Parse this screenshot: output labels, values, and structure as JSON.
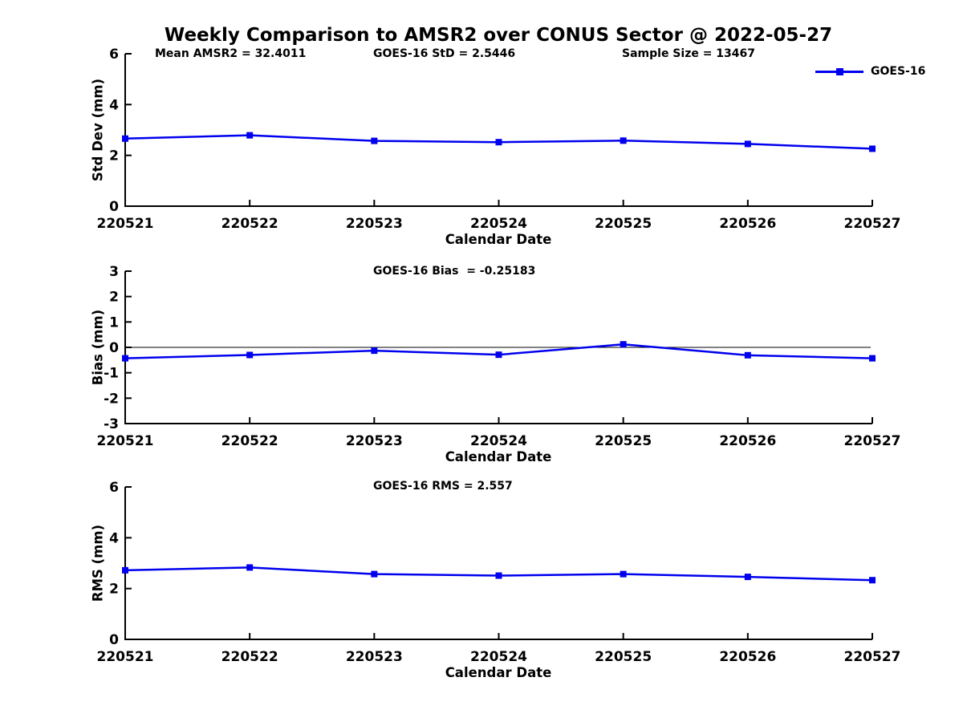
{
  "figure": {
    "title": "Weekly Comparison to AMSR2 over CONUS Sector @ 2022-05-27",
    "background": "#ffffff",
    "accent_color": "#0000ee",
    "axis_color": "#000000",
    "legend": {
      "label": "GOES-16",
      "marker": "filled-square",
      "position": "top-right"
    }
  },
  "chart_data": [
    {
      "id": "std-dev-panel",
      "type": "line",
      "title": "",
      "xlabel": "Calendar Date",
      "ylabel": "Std Dev (mm)",
      "categories": [
        "220521",
        "220522",
        "220523",
        "220524",
        "220525",
        "220526",
        "220527"
      ],
      "series": [
        {
          "name": "GOES-16",
          "values": [
            2.66,
            2.79,
            2.57,
            2.52,
            2.58,
            2.45,
            2.26
          ]
        }
      ],
      "ylim": [
        0,
        6
      ],
      "yticks": [
        0,
        2,
        4,
        6
      ],
      "grid": false,
      "zero_line": false,
      "annotations": [
        {
          "text": "Mean AMSR2 = 32.4011"
        },
        {
          "text": "GOES-16 StD = 2.5446"
        },
        {
          "text": "Sample Size = 13467"
        }
      ]
    },
    {
      "id": "bias-panel",
      "type": "line",
      "title": "",
      "xlabel": "Calendar Date",
      "ylabel": "Bias (mm)",
      "categories": [
        "220521",
        "220522",
        "220523",
        "220524",
        "220525",
        "220526",
        "220527"
      ],
      "series": [
        {
          "name": "GOES-16",
          "values": [
            -0.43,
            -0.3,
            -0.13,
            -0.29,
            0.12,
            -0.31,
            -0.43
          ]
        }
      ],
      "ylim": [
        -3,
        3
      ],
      "yticks": [
        -3,
        -2,
        -1,
        0,
        1,
        2,
        3
      ],
      "grid": false,
      "zero_line": true,
      "annotations": [
        {
          "text": "GOES-16 Bias  = -0.25183"
        }
      ]
    },
    {
      "id": "rms-panel",
      "type": "line",
      "title": "",
      "xlabel": "Calendar Date",
      "ylabel": "RMS (mm)",
      "categories": [
        "220521",
        "220522",
        "220523",
        "220524",
        "220525",
        "220526",
        "220527"
      ],
      "series": [
        {
          "name": "GOES-16",
          "values": [
            2.72,
            2.83,
            2.57,
            2.51,
            2.57,
            2.46,
            2.33
          ]
        }
      ],
      "ylim": [
        0,
        6
      ],
      "yticks": [
        0,
        2,
        4,
        6
      ],
      "grid": false,
      "zero_line": false,
      "annotations": [
        {
          "text": "GOES-16 RMS = 2.557"
        }
      ]
    }
  ]
}
